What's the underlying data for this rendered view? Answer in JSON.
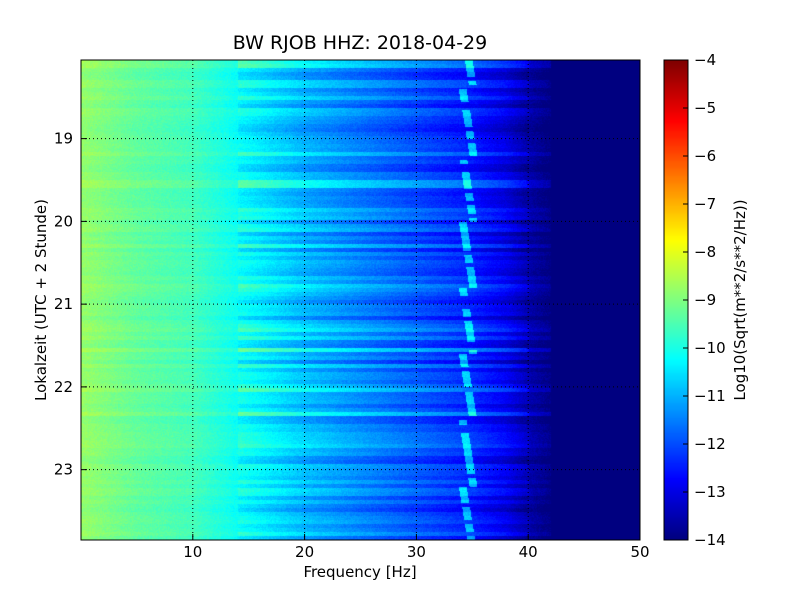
{
  "chart_data": {
    "type": "heatmap",
    "title": "BW RJOB HHZ: 2018-04-29",
    "xlabel": "Frequency [Hz]",
    "ylabel": "Lokalzeit (UTC + 2 Stunde)",
    "xlim": [
      0,
      50
    ],
    "ylim_hours": [
      18.05,
      23.85
    ],
    "y_inverted": true,
    "x_ticks": [
      10,
      20,
      30,
      40,
      50
    ],
    "y_ticks": [
      19,
      20,
      21,
      22,
      23
    ],
    "grid": true,
    "colormap": "jet",
    "colorbar": {
      "label": "Log10(Sqrt(m**2/s**2/Hz))",
      "range": [
        -14,
        -4
      ],
      "ticks": [
        -4,
        -5,
        -6,
        -7,
        -8,
        -9,
        -10,
        -11,
        -12,
        -13,
        -14
      ]
    },
    "trend": {
      "frequency_hz": [
        0,
        5,
        10,
        15,
        20,
        25,
        30,
        35,
        38,
        40,
        42,
        45,
        50
      ],
      "log10_amplitude": [
        -8.8,
        -9.3,
        -9.6,
        -10.3,
        -11.0,
        -11.5,
        -12.0,
        -12.5,
        -13.0,
        -13.6,
        -14.0,
        -14.0,
        -14.0
      ]
    },
    "tonal_line_hz": 34.5
  }
}
